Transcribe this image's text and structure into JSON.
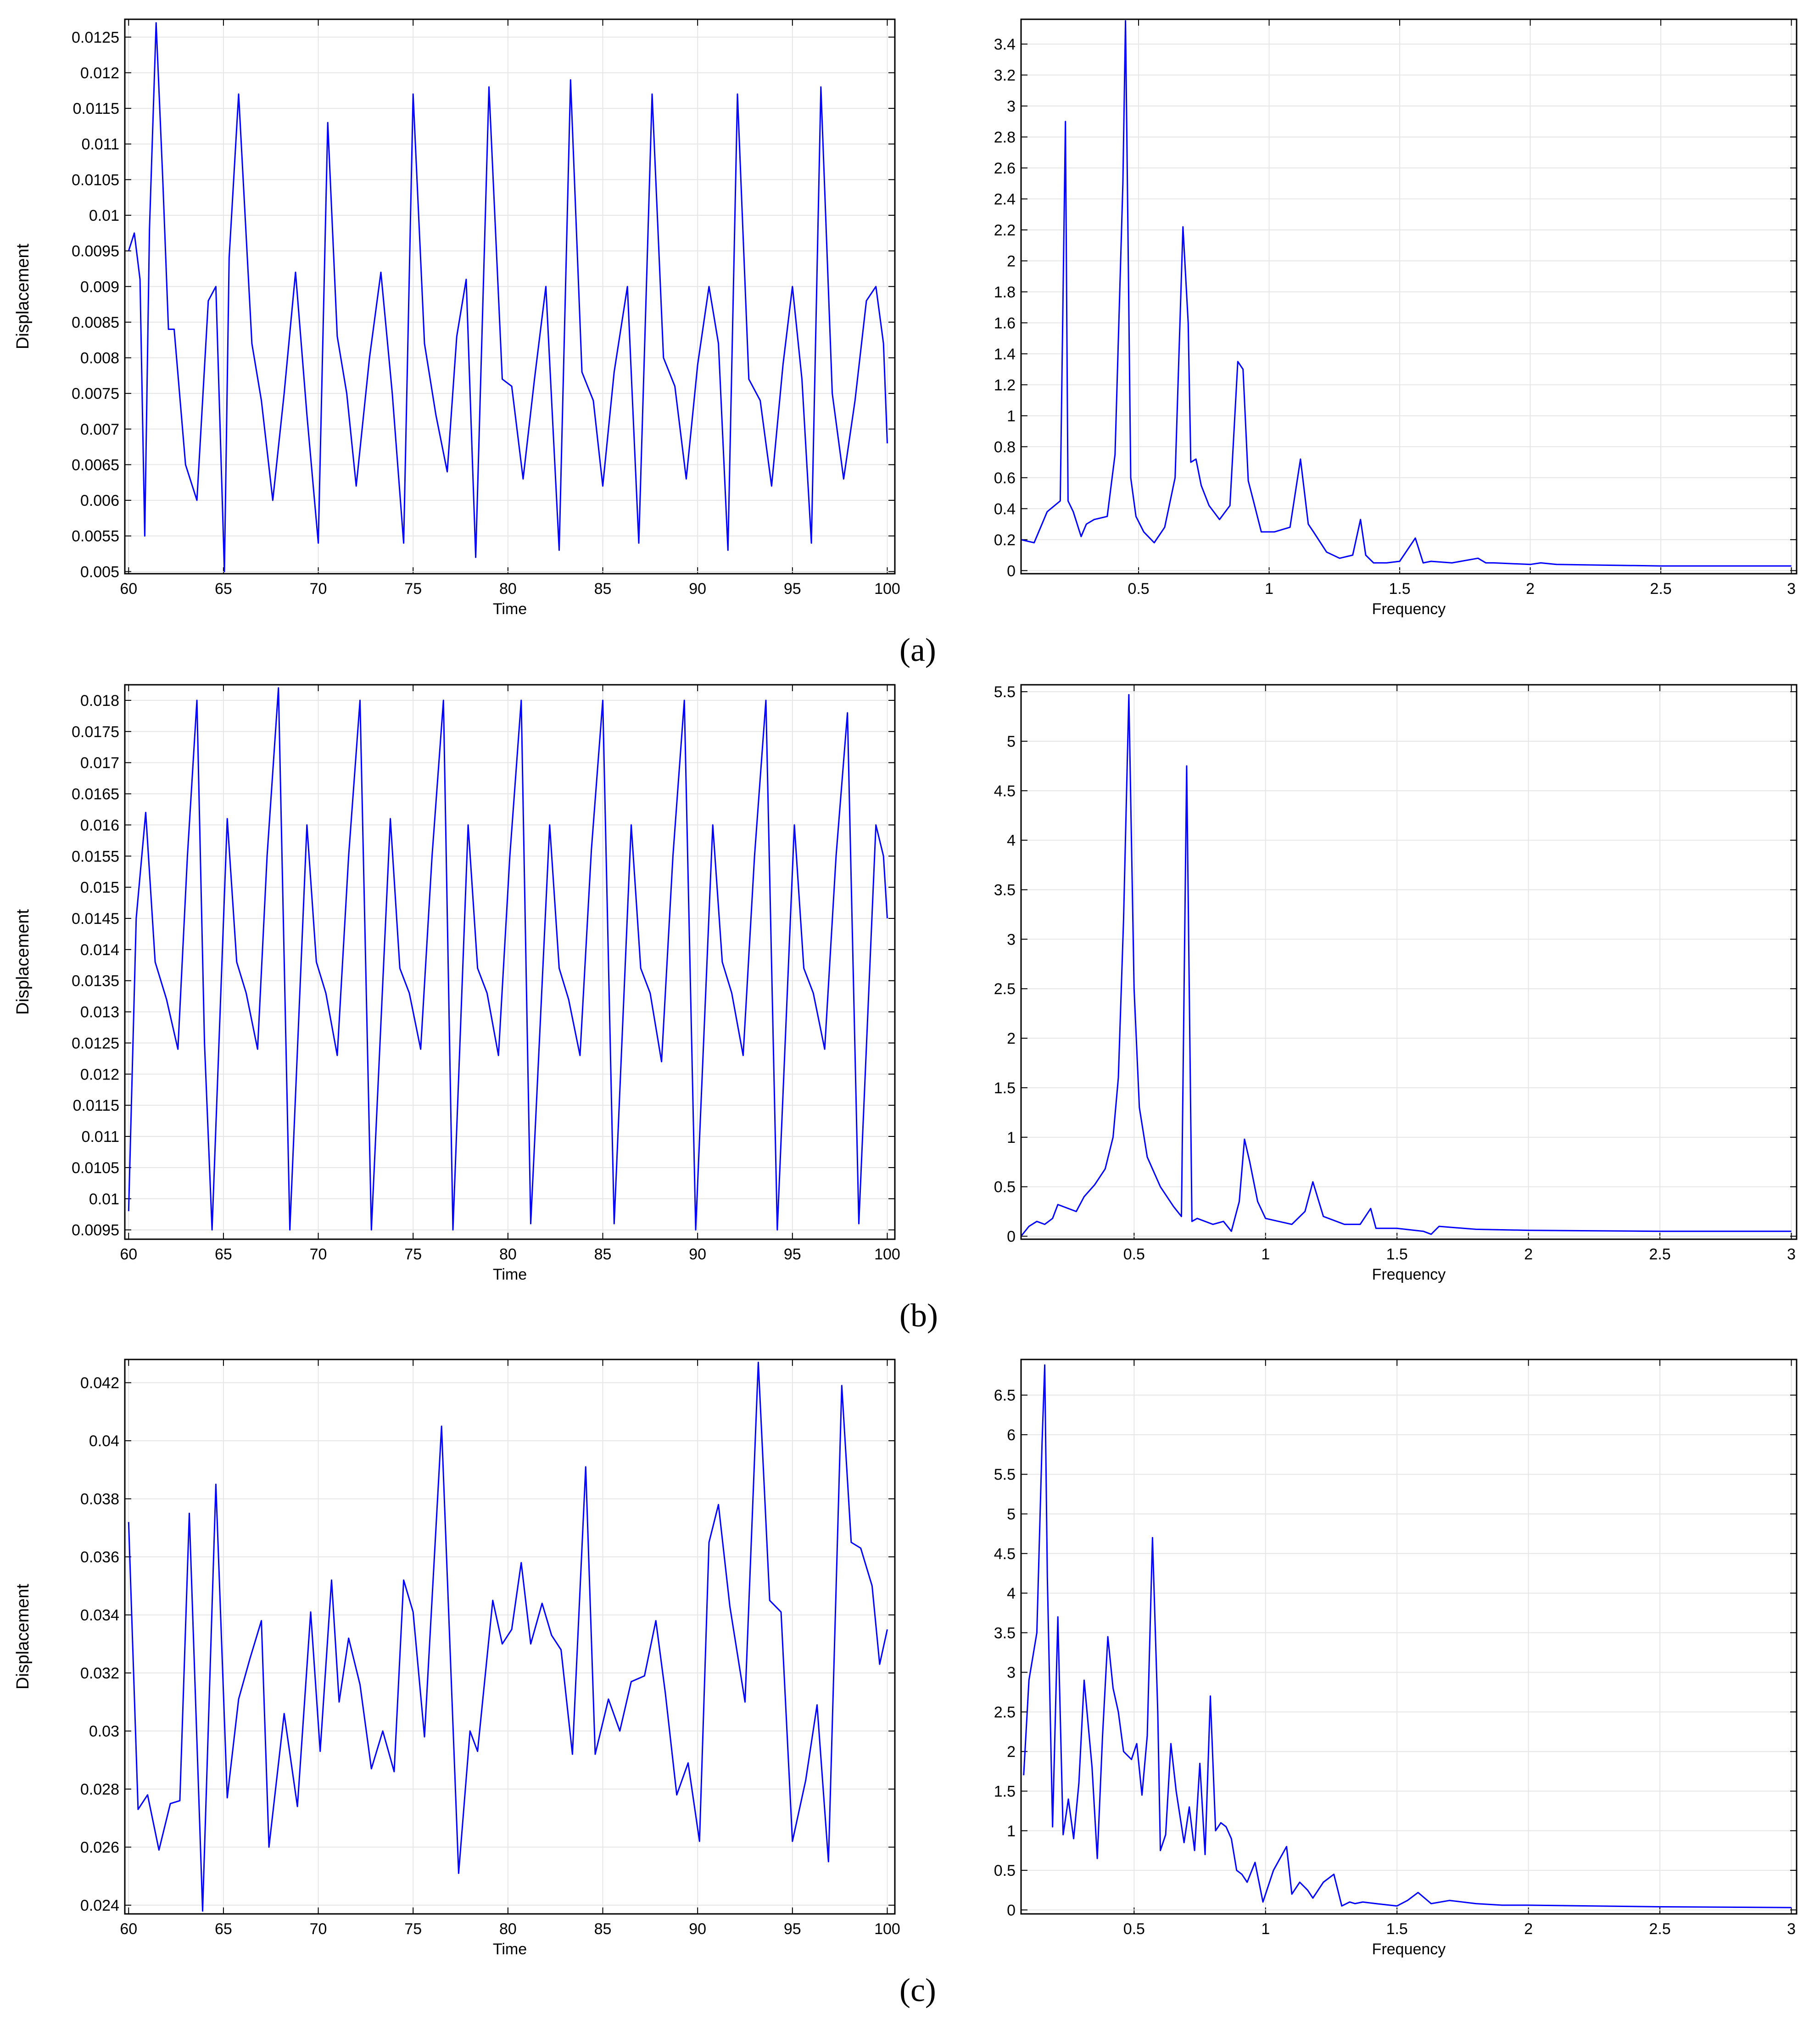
{
  "colors": {
    "line": "#0000ff",
    "grid": "#e6e6e6",
    "frame": "#000000",
    "background": "#ffffff"
  },
  "captions": {
    "a": "(a)",
    "b": "(b)",
    "c": "(c)"
  },
  "chart_data": [
    {
      "id": "a-time",
      "type": "line",
      "panel": "a",
      "xlabel": "Time",
      "ylabel": "Displacement",
      "xlim": [
        59.8,
        100.4
      ],
      "ylim": [
        0.00497,
        0.01275
      ],
      "xticks": [
        60,
        65,
        70,
        75,
        80,
        85,
        90,
        95,
        100
      ],
      "xtick_labels": [
        "60",
        "65",
        "70",
        "75",
        "80",
        "85",
        "90",
        "95",
        "100"
      ],
      "yticks": [
        0.005,
        0.0055,
        0.006,
        0.0065,
        0.007,
        0.0075,
        0.008,
        0.0085,
        0.009,
        0.0095,
        0.01,
        0.0105,
        0.011,
        0.0115,
        0.012,
        0.0125
      ],
      "ytick_labels": [
        "0.005",
        "0.0055",
        "0.006",
        "0.0065",
        "0.007",
        "0.0075",
        "0.008",
        "0.0085",
        "0.009",
        "0.0095",
        "0.01",
        "0.0105",
        "0.011",
        "0.0115",
        "0.012",
        "0.0125"
      ],
      "x": [
        60.0,
        60.3,
        60.6,
        60.85,
        61.1,
        61.45,
        61.8,
        62.1,
        62.4,
        63.0,
        63.6,
        64.2,
        64.6,
        65.05,
        65.3,
        65.8,
        66.5,
        67.0,
        67.6,
        68.2,
        68.8,
        69.4,
        70.0,
        70.5,
        71.0,
        71.5,
        72.0,
        72.7,
        73.3,
        73.9,
        74.5,
        75.0,
        75.6,
        76.2,
        76.8,
        77.3,
        77.8,
        78.3,
        79.0,
        79.7,
        80.2,
        80.8,
        81.4,
        82.0,
        82.7,
        83.3,
        83.9,
        84.5,
        85.0,
        85.6,
        86.3,
        86.9,
        87.6,
        88.2,
        88.8,
        89.4,
        90.0,
        90.6,
        91.1,
        91.6,
        92.1,
        92.7,
        93.3,
        93.9,
        94.5,
        95.0,
        95.5,
        96.0,
        96.5,
        97.1,
        97.7,
        98.3,
        98.9,
        99.4,
        99.8,
        100.0
      ],
      "y": [
        0.0095,
        0.00975,
        0.0091,
        0.0055,
        0.0098,
        0.0127,
        0.0105,
        0.0084,
        0.0084,
        0.0065,
        0.006,
        0.0088,
        0.009,
        0.005,
        0.0094,
        0.0117,
        0.0082,
        0.0074,
        0.006,
        0.0075,
        0.0092,
        0.0072,
        0.0054,
        0.0113,
        0.0083,
        0.0075,
        0.0062,
        0.008,
        0.0092,
        0.0075,
        0.0054,
        0.0117,
        0.0082,
        0.0072,
        0.0064,
        0.0083,
        0.0091,
        0.0052,
        0.0118,
        0.0077,
        0.0076,
        0.0063,
        0.0077,
        0.009,
        0.0053,
        0.0119,
        0.0078,
        0.0074,
        0.0062,
        0.0078,
        0.009,
        0.0054,
        0.0117,
        0.008,
        0.0076,
        0.0063,
        0.0079,
        0.009,
        0.0082,
        0.0053,
        0.0117,
        0.0077,
        0.0074,
        0.0062,
        0.0079,
        0.009,
        0.0077,
        0.0054,
        0.0118,
        0.0075,
        0.0063,
        0.0074,
        0.0088,
        0.009,
        0.0082,
        0.0068
      ]
    },
    {
      "id": "a-freq",
      "type": "line",
      "panel": "a",
      "xlabel": "Frequency",
      "ylabel": "",
      "xlim": [
        0.05,
        3.02
      ],
      "ylim": [
        -0.02,
        3.56
      ],
      "xticks": [
        0.5,
        1,
        1.5,
        2,
        2.5,
        3
      ],
      "xtick_labels": [
        "0.5",
        "1",
        "1.5",
        "2",
        "2.5",
        "3"
      ],
      "yticks": [
        0,
        0.2,
        0.4,
        0.6,
        0.8,
        1,
        1.2,
        1.4,
        1.6,
        1.8,
        2,
        2.2,
        2.4,
        2.6,
        2.8,
        3,
        3.2,
        3.4
      ],
      "ytick_labels": [
        "0",
        "0.2",
        "0.4",
        "0.6",
        "0.8",
        "1",
        "1.2",
        "1.4",
        "1.6",
        "1.8",
        "2",
        "2.2",
        "2.4",
        "2.6",
        "2.8",
        "3",
        "3.2",
        "3.4"
      ],
      "x": [
        0.05,
        0.1,
        0.15,
        0.2,
        0.22,
        0.23,
        0.25,
        0.28,
        0.3,
        0.33,
        0.38,
        0.41,
        0.44,
        0.45,
        0.46,
        0.47,
        0.49,
        0.52,
        0.56,
        0.6,
        0.64,
        0.67,
        0.69,
        0.7,
        0.72,
        0.74,
        0.77,
        0.81,
        0.85,
        0.88,
        0.9,
        0.92,
        0.94,
        0.97,
        1.02,
        1.08,
        1.12,
        1.15,
        1.17,
        1.22,
        1.27,
        1.32,
        1.35,
        1.37,
        1.4,
        1.45,
        1.5,
        1.56,
        1.59,
        1.62,
        1.7,
        1.8,
        1.83,
        1.86,
        2.0,
        2.04,
        2.1,
        2.5,
        3.0
      ],
      "y": [
        0.2,
        0.18,
        0.38,
        0.45,
        2.9,
        0.45,
        0.38,
        0.22,
        0.3,
        0.33,
        0.35,
        0.75,
        2.5,
        3.55,
        2.1,
        0.6,
        0.35,
        0.25,
        0.18,
        0.28,
        0.6,
        2.22,
        1.6,
        0.7,
        0.72,
        0.55,
        0.42,
        0.33,
        0.42,
        1.35,
        1.3,
        0.58,
        0.45,
        0.25,
        0.25,
        0.28,
        0.72,
        0.3,
        0.25,
        0.12,
        0.08,
        0.1,
        0.33,
        0.1,
        0.05,
        0.05,
        0.06,
        0.21,
        0.05,
        0.06,
        0.05,
        0.08,
        0.05,
        0.05,
        0.04,
        0.05,
        0.04,
        0.03,
        0.03
      ]
    },
    {
      "id": "b-time",
      "type": "line",
      "panel": "b",
      "xlabel": "Time",
      "ylabel": "Displacement",
      "xlim": [
        59.8,
        100.4
      ],
      "ylim": [
        0.00935,
        0.01825
      ],
      "xticks": [
        60,
        65,
        70,
        75,
        80,
        85,
        90,
        95,
        100
      ],
      "xtick_labels": [
        "60",
        "65",
        "70",
        "75",
        "80",
        "85",
        "90",
        "95",
        "100"
      ],
      "yticks": [
        0.0095,
        0.01,
        0.0105,
        0.011,
        0.0115,
        0.012,
        0.0125,
        0.013,
        0.0135,
        0.014,
        0.0145,
        0.015,
        0.0155,
        0.016,
        0.0165,
        0.017,
        0.0175,
        0.018
      ],
      "ytick_labels": [
        "0.0095",
        "0.01",
        "0.0105",
        "0.011",
        "0.0115",
        "0.012",
        "0.0125",
        "0.013",
        "0.0135",
        "0.014",
        "0.0145",
        "0.015",
        "0.0155",
        "0.016",
        "0.0165",
        "0.017",
        "0.0175",
        "0.018"
      ],
      "x": [
        60.0,
        60.4,
        60.9,
        61.4,
        62.0,
        62.6,
        63.1,
        63.6,
        64.0,
        64.4,
        65.2,
        65.7,
        66.2,
        66.8,
        67.3,
        67.9,
        68.5,
        69.4,
        69.9,
        70.4,
        71.0,
        71.6,
        72.2,
        72.8,
        73.8,
        74.3,
        74.8,
        75.4,
        76.0,
        76.6,
        77.1,
        77.9,
        78.4,
        78.9,
        79.5,
        80.1,
        80.7,
        81.2,
        82.2,
        82.7,
        83.2,
        83.8,
        84.4,
        85.0,
        85.6,
        86.5,
        87.0,
        87.5,
        88.1,
        88.7,
        89.3,
        89.9,
        90.8,
        91.3,
        91.8,
        92.4,
        93.0,
        93.6,
        94.2,
        95.1,
        95.6,
        96.1,
        96.7,
        97.3,
        97.9,
        98.5,
        99.4,
        99.8,
        100.0
      ],
      "y": [
        0.0098,
        0.0145,
        0.0162,
        0.0138,
        0.0132,
        0.0124,
        0.0155,
        0.018,
        0.0125,
        0.0095,
        0.0161,
        0.0138,
        0.0133,
        0.0124,
        0.0155,
        0.0182,
        0.0095,
        0.016,
        0.0138,
        0.0133,
        0.0123,
        0.0155,
        0.018,
        0.0095,
        0.0161,
        0.0137,
        0.0133,
        0.0124,
        0.0155,
        0.018,
        0.0095,
        0.016,
        0.0137,
        0.0133,
        0.0123,
        0.0155,
        0.018,
        0.0096,
        0.016,
        0.0137,
        0.0132,
        0.0123,
        0.0156,
        0.018,
        0.0096,
        0.016,
        0.0137,
        0.0133,
        0.0122,
        0.0155,
        0.018,
        0.0095,
        0.016,
        0.0138,
        0.0133,
        0.0123,
        0.0155,
        0.018,
        0.0095,
        0.016,
        0.0137,
        0.0133,
        0.0124,
        0.0155,
        0.0178,
        0.0096,
        0.016,
        0.0155,
        0.0145
      ]
    },
    {
      "id": "b-freq",
      "type": "line",
      "panel": "b",
      "xlabel": "Frequency",
      "ylabel": "",
      "xlim": [
        0.07,
        3.02
      ],
      "ylim": [
        -0.03,
        5.57
      ],
      "xticks": [
        0.5,
        1,
        1.5,
        2,
        2.5,
        3
      ],
      "xtick_labels": [
        "0.5",
        "1",
        "1.5",
        "2",
        "2.5",
        "3"
      ],
      "yticks": [
        0,
        0.5,
        1,
        1.5,
        2,
        2.5,
        3,
        3.5,
        4,
        4.5,
        5,
        5.5
      ],
      "ytick_labels": [
        "0",
        "0.5",
        "1",
        "1.5",
        "2",
        "2.5",
        "3",
        "3.5",
        "4",
        "4.5",
        "5",
        "5.5"
      ],
      "x": [
        0.07,
        0.1,
        0.13,
        0.16,
        0.19,
        0.21,
        0.25,
        0.28,
        0.31,
        0.35,
        0.39,
        0.42,
        0.44,
        0.46,
        0.48,
        0.5,
        0.52,
        0.55,
        0.6,
        0.65,
        0.68,
        0.7,
        0.72,
        0.74,
        0.8,
        0.84,
        0.87,
        0.9,
        0.92,
        0.94,
        0.97,
        1.0,
        1.05,
        1.1,
        1.15,
        1.18,
        1.22,
        1.3,
        1.36,
        1.4,
        1.42,
        1.5,
        1.6,
        1.63,
        1.66,
        1.8,
        2.0,
        2.5,
        3.0
      ],
      "y": [
        0.0,
        0.1,
        0.15,
        0.12,
        0.18,
        0.32,
        0.28,
        0.25,
        0.4,
        0.52,
        0.68,
        1.0,
        1.6,
        3.2,
        5.47,
        2.5,
        1.3,
        0.8,
        0.5,
        0.3,
        0.2,
        4.75,
        0.15,
        0.18,
        0.12,
        0.15,
        0.05,
        0.35,
        0.98,
        0.75,
        0.35,
        0.18,
        0.15,
        0.12,
        0.25,
        0.55,
        0.2,
        0.12,
        0.12,
        0.28,
        0.08,
        0.08,
        0.05,
        0.02,
        0.1,
        0.07,
        0.06,
        0.05,
        0.05
      ]
    },
    {
      "id": "c-time",
      "type": "line",
      "panel": "c",
      "xlabel": "Time",
      "ylabel": "Displacement",
      "xlim": [
        59.8,
        100.4
      ],
      "ylim": [
        0.0237,
        0.0428
      ],
      "xticks": [
        60,
        65,
        70,
        75,
        80,
        85,
        90,
        95,
        100
      ],
      "xtick_labels": [
        "60",
        "65",
        "70",
        "75",
        "80",
        "85",
        "90",
        "95",
        "100"
      ],
      "yticks": [
        0.024,
        0.026,
        0.028,
        0.03,
        0.032,
        0.034,
        0.036,
        0.038,
        0.04,
        0.042
      ],
      "ytick_labels": [
        "0.024",
        "0.026",
        "0.028",
        "0.03",
        "0.032",
        "0.034",
        "0.036",
        "0.038",
        "0.04",
        "0.042"
      ],
      "x": [
        60.0,
        60.5,
        61.0,
        61.6,
        62.2,
        62.7,
        63.2,
        63.9,
        64.6,
        65.2,
        65.8,
        66.4,
        67.0,
        67.4,
        68.2,
        68.9,
        69.6,
        70.1,
        70.7,
        71.1,
        71.6,
        72.2,
        72.8,
        73.4,
        74.0,
        74.5,
        75.0,
        75.6,
        76.5,
        77.4,
        78.0,
        78.4,
        79.2,
        79.7,
        80.2,
        80.7,
        81.2,
        81.8,
        82.3,
        82.8,
        83.4,
        84.1,
        84.6,
        85.3,
        85.9,
        86.5,
        87.2,
        87.8,
        88.3,
        88.9,
        89.5,
        90.1,
        90.6,
        91.1,
        91.7,
        92.5,
        93.2,
        93.8,
        94.4,
        95.0,
        95.7,
        96.3,
        96.9,
        97.6,
        98.1,
        98.6,
        99.2,
        99.6,
        100.0
      ],
      "y": [
        0.0372,
        0.0273,
        0.0278,
        0.0259,
        0.0275,
        0.0276,
        0.0375,
        0.0238,
        0.0385,
        0.0277,
        0.0311,
        0.0325,
        0.0338,
        0.026,
        0.0306,
        0.0274,
        0.0341,
        0.0293,
        0.0352,
        0.031,
        0.0332,
        0.0316,
        0.0287,
        0.03,
        0.0286,
        0.0352,
        0.0341,
        0.0298,
        0.0405,
        0.0251,
        0.03,
        0.0293,
        0.0345,
        0.033,
        0.0335,
        0.0358,
        0.033,
        0.0344,
        0.0333,
        0.0328,
        0.0292,
        0.0391,
        0.0292,
        0.0311,
        0.03,
        0.0317,
        0.0319,
        0.0338,
        0.0313,
        0.0278,
        0.0289,
        0.0262,
        0.0365,
        0.0378,
        0.0343,
        0.031,
        0.0427,
        0.0345,
        0.0341,
        0.0262,
        0.0283,
        0.0309,
        0.0255,
        0.0419,
        0.0365,
        0.0363,
        0.035,
        0.0323,
        0.0335
      ]
    },
    {
      "id": "c-freq",
      "type": "line",
      "panel": "c",
      "xlabel": "Frequency",
      "ylabel": "",
      "xlim": [
        0.07,
        3.02
      ],
      "ylim": [
        -0.05,
        6.95
      ],
      "xticks": [
        0.5,
        1,
        1.5,
        2,
        2.5,
        3
      ],
      "xtick_labels": [
        "0.5",
        "1",
        "1.5",
        "2",
        "2.5",
        "3"
      ],
      "yticks": [
        0,
        0.5,
        1,
        1.5,
        2,
        2.5,
        3,
        3.5,
        4,
        4.5,
        5,
        5.5,
        6,
        6.5
      ],
      "ytick_labels": [
        "0",
        "0.5",
        "1",
        "1.5",
        "2",
        "2.5",
        "3",
        "3.5",
        "4",
        "4.5",
        "5",
        "5.5",
        "6",
        "6.5"
      ],
      "x": [
        0.08,
        0.1,
        0.13,
        0.15,
        0.16,
        0.17,
        0.19,
        0.21,
        0.23,
        0.25,
        0.27,
        0.29,
        0.31,
        0.34,
        0.36,
        0.38,
        0.4,
        0.42,
        0.44,
        0.46,
        0.49,
        0.51,
        0.53,
        0.55,
        0.57,
        0.59,
        0.6,
        0.62,
        0.64,
        0.66,
        0.69,
        0.71,
        0.73,
        0.75,
        0.77,
        0.79,
        0.81,
        0.83,
        0.85,
        0.87,
        0.89,
        0.91,
        0.93,
        0.96,
        0.99,
        1.03,
        1.08,
        1.1,
        1.13,
        1.16,
        1.18,
        1.22,
        1.26,
        1.29,
        1.32,
        1.34,
        1.37,
        1.42,
        1.5,
        1.54,
        1.58,
        1.63,
        1.7,
        1.8,
        1.9,
        2.0,
        2.5,
        3.0
      ],
      "y": [
        1.7,
        2.9,
        3.5,
        5.9,
        6.88,
        4.2,
        1.05,
        3.7,
        0.95,
        1.4,
        0.9,
        1.6,
        2.9,
        1.8,
        0.65,
        2.2,
        3.45,
        2.8,
        2.5,
        2.0,
        1.9,
        2.1,
        1.45,
        2.2,
        4.7,
        2.5,
        0.75,
        0.95,
        2.1,
        1.5,
        0.85,
        1.3,
        0.75,
        1.85,
        0.7,
        2.7,
        1.0,
        1.1,
        1.05,
        0.9,
        0.5,
        0.45,
        0.35,
        0.6,
        0.1,
        0.5,
        0.8,
        0.2,
        0.35,
        0.25,
        0.15,
        0.35,
        0.45,
        0.05,
        0.1,
        0.08,
        0.1,
        0.08,
        0.05,
        0.12,
        0.22,
        0.08,
        0.12,
        0.08,
        0.06,
        0.06,
        0.04,
        0.03
      ]
    }
  ]
}
